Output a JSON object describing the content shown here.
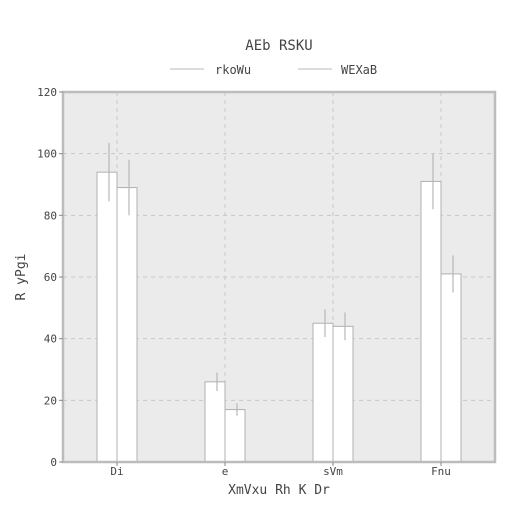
{
  "chart_data": {
    "type": "bar",
    "title": "AEb RSKU",
    "xlabel": "XmVxu Rh K Dr",
    "ylabel": "R yPgi",
    "categories": [
      "Di",
      "e",
      "sVm",
      "Fnu"
    ],
    "series": [
      {
        "name": "rkoWu",
        "values": [
          94,
          26,
          45,
          91
        ],
        "errors": [
          9.5,
          3,
          4.5,
          9
        ]
      },
      {
        "name": "WEXaB",
        "values": [
          89,
          17,
          44,
          61
        ],
        "errors": [
          9,
          2,
          4.5,
          6
        ]
      }
    ],
    "ylim": [
      0,
      120
    ],
    "yticks": [
      0,
      20,
      40,
      60,
      80,
      100,
      120
    ],
    "grid": true,
    "legend_position": "top-center",
    "colors": {
      "plot_background": "#ebebeb",
      "bar_fill": "#ffffff",
      "bar_edge": "#b0b0b0",
      "error_bar": "#b8b8b8",
      "grid": "#c8c8c8",
      "frame": "#bcbcbc",
      "text": "#444444"
    }
  }
}
